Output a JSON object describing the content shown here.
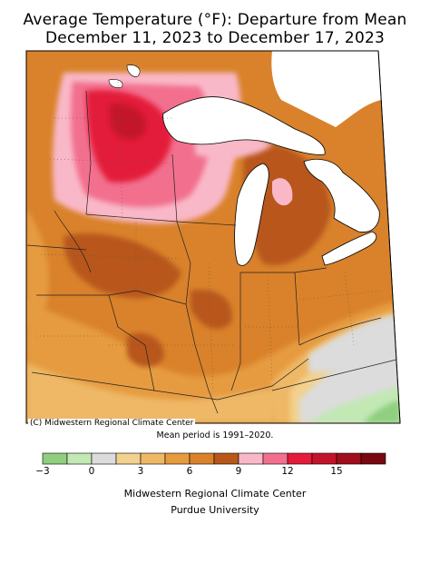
{
  "title": {
    "line1": "Average Temperature (°F): Departure from Mean",
    "line2": "December 11, 2023 to December 17, 2023"
  },
  "map": {
    "credit": "(C) Midwestern Regional Climate Center",
    "mean_period": "Mean period is 1991–2020."
  },
  "legend": {
    "bin_step": 1.5,
    "bins": [
      {
        "from": -3.0,
        "to": -1.5,
        "color": "#8fcf7f"
      },
      {
        "from": -1.5,
        "to": 0.0,
        "color": "#c2e8b4"
      },
      {
        "from": 0.0,
        "to": 1.5,
        "color": "#dcdcdc"
      },
      {
        "from": 1.5,
        "to": 3.0,
        "color": "#f2d18f"
      },
      {
        "from": 3.0,
        "to": 4.5,
        "color": "#eeb866"
      },
      {
        "from": 4.5,
        "to": 6.0,
        "color": "#e69b3f"
      },
      {
        "from": 6.0,
        "to": 7.5,
        "color": "#d9822b"
      },
      {
        "from": 7.5,
        "to": 9.0,
        "color": "#b8571a"
      },
      {
        "from": 9.0,
        "to": 10.5,
        "color": "#f9b8c8"
      },
      {
        "from": 10.5,
        "to": 12.0,
        "color": "#f2708e"
      },
      {
        "from": 12.0,
        "to": 13.5,
        "color": "#e41b3a"
      },
      {
        "from": 13.5,
        "to": 15.0,
        "color": "#c4142a"
      },
      {
        "from": 15.0,
        "to": 16.5,
        "color": "#a00d1d"
      },
      {
        "from": 16.5,
        "to": 18.0,
        "color": "#780812"
      }
    ],
    "ticks": [
      "−3",
      "0",
      "3",
      "6",
      "9",
      "12",
      "15"
    ]
  },
  "footer": {
    "line1": "Midwestern Regional Climate Center",
    "line2": "Purdue University"
  }
}
